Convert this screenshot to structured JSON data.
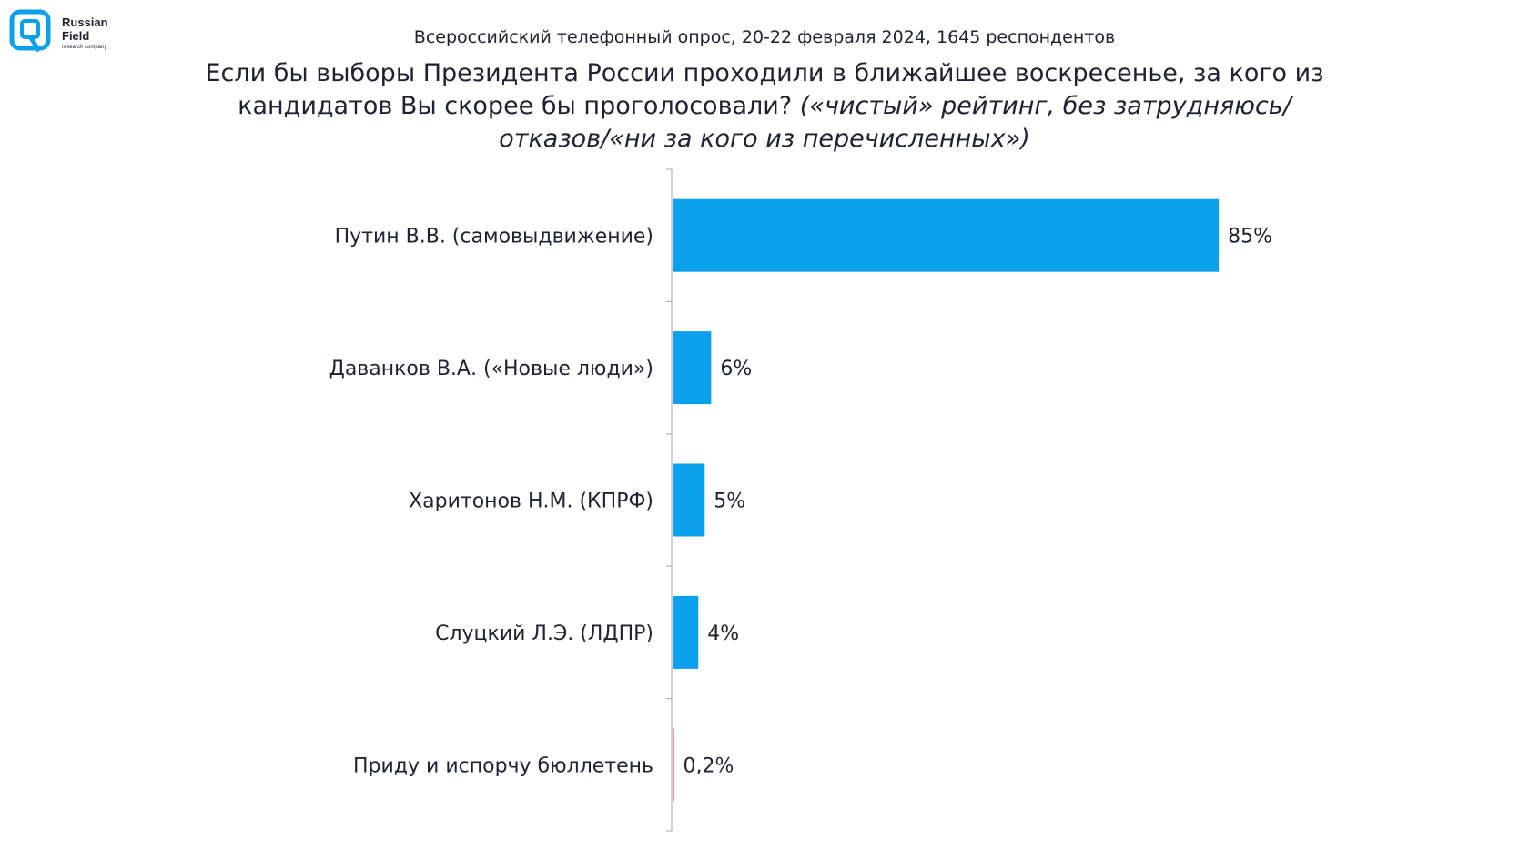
{
  "logo": {
    "line1": "Russian",
    "line2": "Field",
    "tagline": "research company"
  },
  "subtitle": "Всероссийский телефонный опрос, 20-22 февраля 2024, 1645 респондентов",
  "title": {
    "main": "Если бы выборы Президента России проходили в ближайшее воскресенье, за кого из кандидатов Вы скорее бы проголосовали? ",
    "italic": "(«чистый» рейтинг, без затрудняюсь/отказов/«ни за кого из перечисленных»)"
  },
  "colors": {
    "bar": "#0aa0eb",
    "bar_spoiled": "#d92b2b",
    "axis": "#a6a6a6",
    "text": "#1d2330"
  },
  "chart_data": {
    "type": "bar",
    "orientation": "horizontal",
    "categories": [
      "Путин В.В. (самовыдвижение)",
      "Даванков В.А. («Новые люди»)",
      "Харитонов Н.М. (КПРФ)",
      "Слуцкий Л.Э. (ЛДПР)",
      "Приду и испорчу бюллетень"
    ],
    "values": [
      85,
      6,
      5,
      4,
      0.2
    ],
    "value_labels": [
      "85%",
      "6%",
      "5%",
      "4%",
      "0,2%"
    ],
    "unit": "%",
    "xlim": [
      0,
      100
    ],
    "grid": false,
    "legend": "none"
  }
}
